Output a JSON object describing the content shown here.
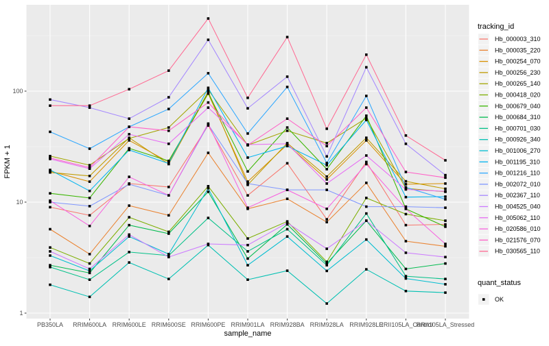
{
  "figure": {
    "background": "#FFFFFF",
    "panel_background": "#EBEBEB",
    "grid_major_color": "#FFFFFF",
    "grid_minor_color": "#F5F5F5",
    "axis_text_color": "#4D4D4D",
    "axis_title_color": "#000000",
    "tick_mark_color": "#333333",
    "point_color": "#000000",
    "legend_key_fill": "#F2F2F2"
  },
  "chart_data": {
    "type": "line",
    "title": "",
    "xlabel": "sample_name",
    "ylabel": "FPKM + 1",
    "y_scale": "log10",
    "y_ticks": [
      1,
      10,
      100
    ],
    "y_tick_labels": [
      "1",
      "10",
      "100"
    ],
    "y_minor_ticks": [
      3.162,
      31.62,
      316.2
    ],
    "ylim": [
      0.9,
      580
    ],
    "grid": true,
    "point_shape": "filled-square",
    "legend_position": "right",
    "legend_title": "tracking_id",
    "quant_legend_title": "quant_status",
    "quant_legend_items": [
      "OK"
    ],
    "categories": [
      "PB350LA",
      "RRIM600LA",
      "RRIM600LE",
      "RRIM600SE",
      "RRIM600PE",
      "RRIM901LA",
      "RRIM928BA",
      "RRIM928LA",
      "RRIM928LE",
      "RRII105LA_Control",
      "RRII105LA_Stressed"
    ],
    "series": [
      {
        "name": "Hb_000003_310",
        "color": "#F8766D",
        "values": [
          9.0,
          7.6,
          14.7,
          13.7,
          49,
          11.5,
          22.4,
          7.0,
          23,
          6.2,
          6.3
        ]
      },
      {
        "name": "Hb_000035_220",
        "color": "#EA8331",
        "values": [
          5.7,
          3.4,
          9.3,
          7.6,
          27.8,
          8.7,
          10.7,
          6.6,
          14.9,
          4.45,
          4.0
        ]
      },
      {
        "name": "Hb_000254_070",
        "color": "#D89000",
        "values": [
          19,
          15.3,
          36,
          23,
          95,
          15.3,
          33,
          16,
          36,
          14.5,
          14.7
        ]
      },
      {
        "name": "Hb_000256_230",
        "color": "#C09B00",
        "values": [
          18.5,
          17.2,
          38,
          22,
          99,
          14.3,
          34,
          17,
          38,
          15.4,
          13.2
        ]
      },
      {
        "name": "Hb_000265_140",
        "color": "#A3A500",
        "values": [
          26,
          21.5,
          37.5,
          47,
          103,
          32.6,
          44,
          34,
          57,
          13.3,
          12.4
        ]
      },
      {
        "name": "Hb_000418_020",
        "color": "#7CAE00",
        "values": [
          3.9,
          2.8,
          7.3,
          5.4,
          13.9,
          4.7,
          6.7,
          2.9,
          10.9,
          7.8,
          6.8
        ]
      },
      {
        "name": "Hb_000679_040",
        "color": "#39B600",
        "values": [
          12,
          10.9,
          30.5,
          23.5,
          96,
          18.9,
          47,
          19.8,
          60,
          8.7,
          6.0
        ]
      },
      {
        "name": "Hb_000684_310",
        "color": "#00BB4E",
        "values": [
          2.7,
          2.3,
          6.2,
          5.2,
          12.4,
          3.1,
          6.3,
          2.8,
          6.8,
          2.5,
          2.8
        ]
      },
      {
        "name": "Hb_000701_030",
        "color": "#00C087",
        "values": [
          2.6,
          2.0,
          3.55,
          3.3,
          7.2,
          3.6,
          5.7,
          2.7,
          7.9,
          2.15,
          2.03
        ]
      },
      {
        "name": "Hb_000926_340",
        "color": "#00C0B2",
        "values": [
          1.8,
          1.4,
          2.86,
          2.03,
          4.1,
          2.0,
          2.41,
          1.22,
          2.48,
          1.58,
          1.53
        ]
      },
      {
        "name": "Hb_001006_270",
        "color": "#00BDD0",
        "values": [
          3.3,
          2.4,
          4.9,
          3.4,
          13.3,
          2.7,
          4.9,
          2.4,
          4.6,
          2.05,
          1.82
        ]
      },
      {
        "name": "Hb_001195_310",
        "color": "#00B4F0",
        "values": [
          19.5,
          12.6,
          29.5,
          22.3,
          107,
          25.2,
          32,
          21.5,
          55,
          11.1,
          11.2
        ]
      },
      {
        "name": "Hb_001216_110",
        "color": "#2FA8FF",
        "values": [
          43,
          30.3,
          47.7,
          69,
          145,
          41.5,
          109,
          22.5,
          90.5,
          13.6,
          10.6
        ]
      },
      {
        "name": "Hb_002072_010",
        "color": "#7F96FF",
        "values": [
          10,
          9.2,
          14.5,
          11.5,
          50,
          14.7,
          12.9,
          12.9,
          9.1,
          9.1,
          8.9
        ]
      },
      {
        "name": "Hb_002367_110",
        "color": "#A588FF",
        "values": [
          84,
          71,
          56.5,
          88,
          290,
          70,
          135,
          25.8,
          164,
          33.5,
          17.5
        ]
      },
      {
        "name": "Hb_004525_040",
        "color": "#CC79FF",
        "values": [
          3.6,
          2.5,
          5.1,
          3.2,
          4.2,
          4.1,
          6.5,
          3.8,
          6.8,
          3.5,
          3.2
        ]
      },
      {
        "name": "Hb_005062_110",
        "color": "#E76BF3",
        "values": [
          24.5,
          20,
          40.9,
          33.5,
          71,
          33,
          33.5,
          14.7,
          26.3,
          13.0,
          12.5
        ]
      },
      {
        "name": "Hb_020586_010",
        "color": "#F763E0",
        "values": [
          10.3,
          6.1,
          16.9,
          11.5,
          51,
          8.9,
          12.9,
          8.7,
          22,
          8.7,
          4.2
        ]
      },
      {
        "name": "Hb_021576_070",
        "color": "#FF61C7",
        "values": [
          25,
          20.5,
          47.7,
          44,
          79,
          32.6,
          56.5,
          32,
          71,
          18.7,
          16.6
        ]
      },
      {
        "name": "Hb_030565_110",
        "color": "#FF6B94",
        "values": [
          74,
          74,
          104,
          153,
          451,
          87,
          307,
          45.8,
          213,
          39.8,
          23.8
        ]
      }
    ]
  }
}
